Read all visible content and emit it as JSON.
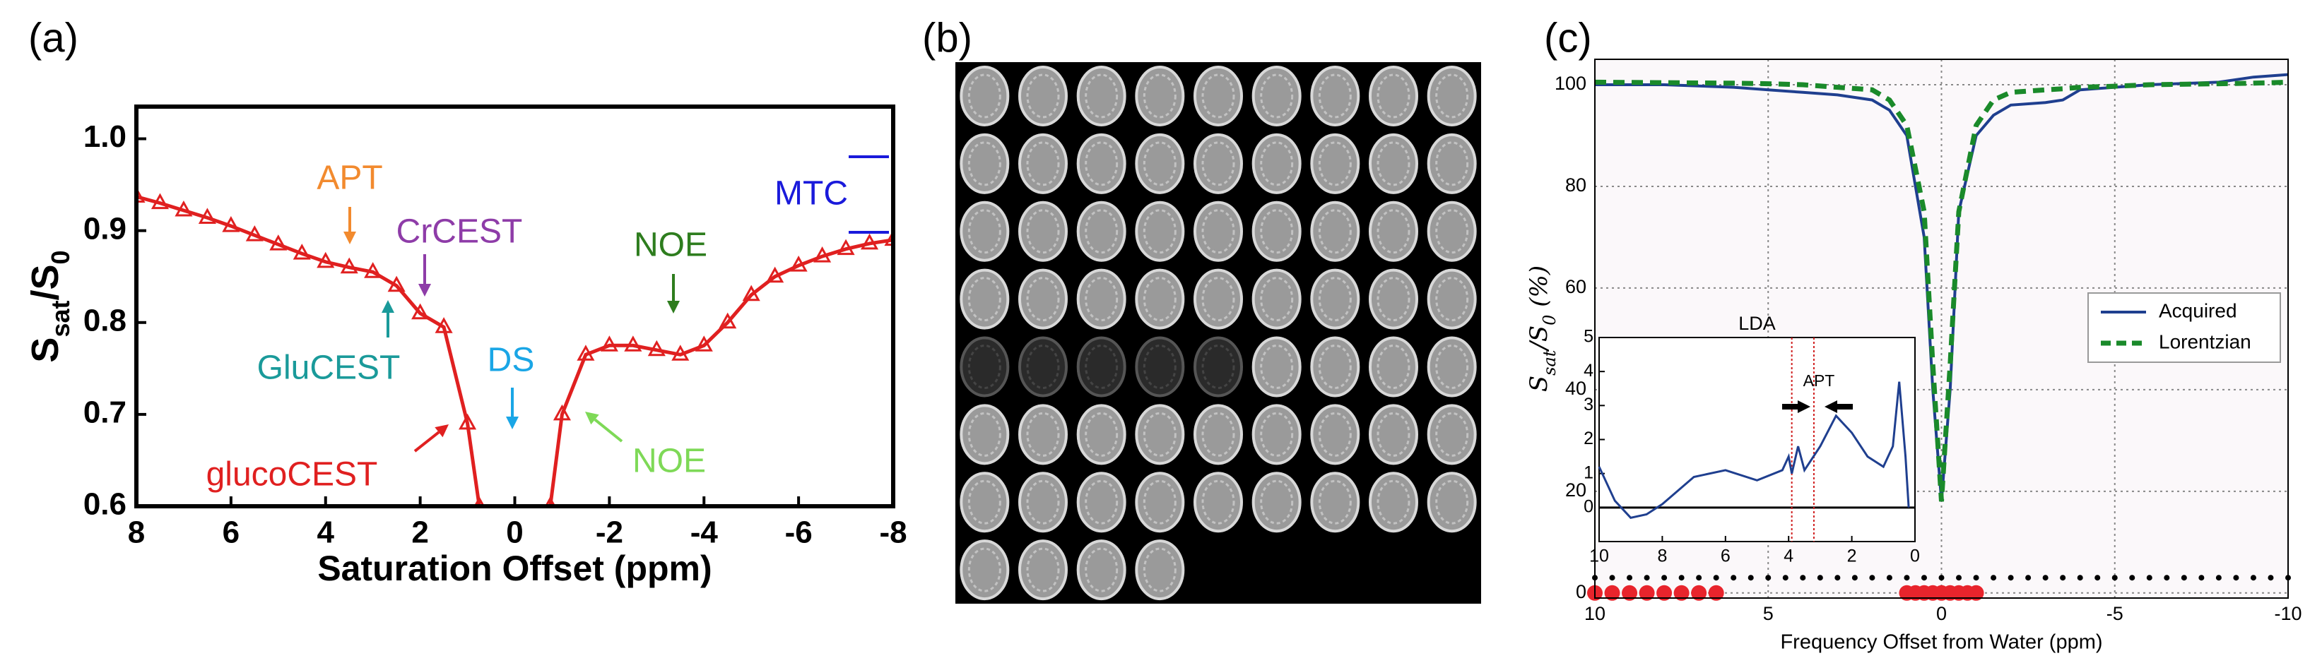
{
  "chart_data": [
    {
      "type": "line",
      "panel_label": "(a)",
      "x_label": "Saturation Offset (ppm)",
      "y_label": [
        "S",
        "sat",
        "/S",
        "0"
      ],
      "x": [
        8,
        7.5,
        7,
        6.5,
        6,
        5.5,
        5,
        4.5,
        4,
        3.5,
        3,
        2.5,
        2,
        1.5,
        1,
        0.75,
        0,
        -0.75,
        -1,
        -1.5,
        -2,
        -2.5,
        -3,
        -3.5,
        -4,
        -4.5,
        -5,
        -5.5,
        -6,
        -6.5,
        -7,
        -7.5,
        -8
      ],
      "series": [
        {
          "color": "#e02020",
          "marker": "triangle",
          "values": [
            0.937,
            0.93,
            0.922,
            0.914,
            0.905,
            0.895,
            0.885,
            0.875,
            0.866,
            0.86,
            0.855,
            0.84,
            0.81,
            0.795,
            0.69,
            0.6,
            null,
            0.6,
            0.7,
            0.765,
            0.775,
            0.775,
            0.77,
            0.765,
            0.775,
            0.8,
            0.83,
            0.85,
            0.862,
            0.872,
            0.88,
            0.886,
            0.89
          ]
        }
      ],
      "xlim": [
        8,
        -8
      ],
      "ylim": [
        0.6,
        1.035
      ],
      "xticks": [
        8,
        6,
        4,
        2,
        0,
        -2,
        -4,
        -6,
        -8
      ],
      "yticks": [
        0.6,
        0.7,
        0.8,
        0.9,
        {
          "value": 1,
          "label": "1.0"
        }
      ],
      "annotations": [
        {
          "text": "APT",
          "color": "#f28a2e"
        },
        {
          "text": "CrCEST",
          "color": "#8e3ca8"
        },
        {
          "text": "NOE",
          "color": "#2e7d1e"
        },
        {
          "text": "MTC",
          "color": "#1a1adb"
        },
        {
          "text": "GluCEST",
          "color": "#1a9a9a"
        },
        {
          "text": "DS",
          "color": "#1aa6e6"
        },
        {
          "text": "NOE",
          "color": "#7ed957"
        },
        {
          "text": "glucoCEST",
          "color": "#e02020"
        }
      ]
    },
    {
      "type": "image-grid",
      "panel_label": "(b)"
    },
    {
      "type": "line",
      "panel_label": "(c)",
      "x_label": "Frequency Offset from Water (ppm)",
      "y_label": [
        "S",
        "sat",
        "/S",
        "0",
        " (%)"
      ],
      "x": [
        10,
        8,
        6,
        5,
        4,
        3,
        2,
        1.5,
        1,
        0.5,
        0.25,
        0,
        -0.25,
        -0.5,
        -1,
        -1.5,
        -2,
        -3,
        -3.5,
        -4,
        -5,
        -6,
        -8,
        -9,
        -10
      ],
      "series": [
        {
          "name": "Acquired",
          "color": "#1f3f8f",
          "dashed": false,
          "values": [
            100,
            100,
            99.5,
            99,
            98.5,
            98,
            97,
            95,
            90,
            70,
            40,
            18,
            40,
            75,
            90,
            94,
            96,
            96.5,
            97,
            99,
            99.5,
            100,
            100.5,
            101.5,
            102
          ]
        },
        {
          "name": "Lorentzian",
          "color": "#1a8a2a",
          "dashed": true,
          "values": [
            100.5,
            100.4,
            100.3,
            100.2,
            100,
            99.5,
            99,
            97,
            92,
            75,
            45,
            18,
            45,
            75,
            92,
            97,
            98.5,
            99,
            99.2,
            99.5,
            99.7,
            100,
            100.2,
            100.3,
            100.5
          ]
        }
      ],
      "xlim": [
        10,
        -10
      ],
      "ylim": [
        -1,
        105
      ],
      "xticks": [
        10,
        5,
        0,
        -5,
        -10
      ],
      "yticks": [
        0,
        20,
        40,
        60,
        80,
        100
      ],
      "grid": true,
      "legend": "center right",
      "sampled_offsets": {
        "y": 3,
        "color": "#000000",
        "x": [
          10,
          9.5,
          9,
          8.5,
          8,
          7.5,
          7,
          6.5,
          6,
          5.5,
          5,
          4.5,
          4,
          3.5,
          3,
          2.5,
          2,
          1.5,
          1,
          0.5,
          0,
          -0.5,
          -1,
          -1.5,
          -2,
          -2.5,
          -3,
          -3.5,
          -4,
          -4.5,
          -5,
          -5.5,
          -6,
          -6.5,
          -7,
          -7.5,
          -8,
          -8.5,
          -9,
          -9.5,
          -10
        ]
      },
      "selected_offsets": {
        "y": 0,
        "color": "#e8242c",
        "x": [
          10,
          9.5,
          9,
          8.5,
          8,
          7.5,
          7,
          6.5,
          1,
          0.75,
          0.5,
          0.25,
          0,
          -0.25,
          -0.5,
          -0.75,
          -1
        ]
      },
      "inset": {
        "title": "LDA",
        "color": "#1f3f8f",
        "annotation": "APT",
        "apt_band": [
          3.9,
          3.2
        ],
        "x": [
          10,
          9.5,
          9,
          8.5,
          8,
          7,
          6,
          5,
          4.2,
          4,
          3.9,
          3.7,
          3.5,
          3,
          2.5,
          2,
          1.5,
          1,
          0.7,
          0.5,
          0.3,
          0.2
        ],
        "values": [
          1.2,
          0.2,
          -0.3,
          -0.2,
          0.1,
          0.9,
          1.1,
          0.8,
          1.1,
          1.5,
          1.0,
          1.8,
          1.1,
          1.8,
          2.7,
          2.2,
          1.5,
          1.2,
          1.8,
          3.7,
          1.5,
          0
        ],
        "xlim": [
          10,
          0
        ],
        "ylim": [
          -1,
          5
        ],
        "xticks": [
          10,
          8,
          6,
          4,
          2,
          0
        ],
        "yticks": [
          0,
          1,
          2,
          3,
          4,
          5
        ],
        "baseline": 0
      }
    }
  ]
}
